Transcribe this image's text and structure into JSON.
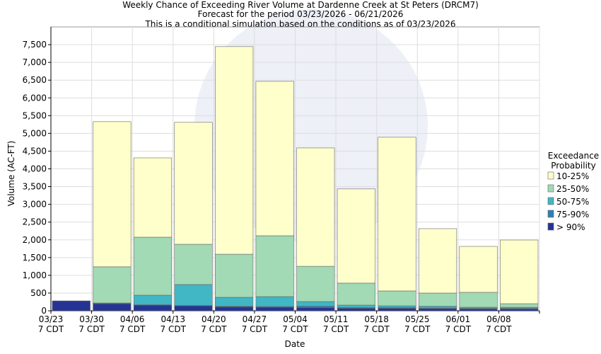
{
  "chart_data": {
    "type": "stacked_bar",
    "title": "Weekly Chance of Exceeding River Volume at Dardenne Creek at St Peters (DRCM7)",
    "subtitle": "Forecast for the period 03/23/2026 - 06/21/2026",
    "subtitle2": "This is a conditional simulation based on the conditions as of 03/23/2026",
    "x_label": "Date",
    "y_label": "Volume (AC-FT)",
    "legend_title": "Exceedance Probability",
    "categories": [
      "03/23 7 CDT",
      "03/30 7 CDT",
      "04/06 7 CDT",
      "04/13 7 CDT",
      "04/20 7 CDT",
      "04/27 7 CDT",
      "05/04 7 CDT",
      "05/11 7 CDT",
      "05/18 7 CDT",
      "05/25 7 CDT",
      "06/01 7 CDT",
      "06/08 7 CDT"
    ],
    "series": [
      {
        "name": "> 90%",
        "color": "#253494",
        "values": [
          280,
          200,
          160,
          140,
          110,
          100,
          90,
          70,
          70,
          60,
          50,
          50
        ]
      },
      {
        "name": "75-90%",
        "color": "#2c7fb8",
        "values": [
          0,
          10,
          10,
          10,
          20,
          20,
          40,
          20,
          20,
          20,
          20,
          20
        ]
      },
      {
        "name": "50-75%",
        "color": "#41b6c4",
        "values": [
          0,
          10,
          270,
          590,
          250,
          280,
          130,
          70,
          50,
          50,
          30,
          30
        ]
      },
      {
        "name": "25-50%",
        "color": "#a1dab4",
        "values": [
          0,
          1020,
          1635,
          1135,
          1215,
          1715,
          995,
          620,
          420,
          370,
          420,
          100
        ]
      },
      {
        "name": "10-25%",
        "color": "#ffffcc",
        "values": [
          0,
          4090,
          2235,
          3435,
          5850,
          4350,
          3335,
          2655,
          4330,
          1815,
          1295,
          1795
        ]
      }
    ],
    "ylim": [
      0,
      8000
    ],
    "yticks": [
      0,
      500,
      {
        "value": 1000,
        "label": "1,000"
      },
      {
        "value": 1500,
        "label": "1,500"
      },
      {
        "value": 2000,
        "label": "2,000"
      },
      {
        "value": 2500,
        "label": "2,500"
      },
      {
        "value": 3000,
        "label": "3,000"
      },
      {
        "value": 3500,
        "label": "3,500"
      },
      {
        "value": 4000,
        "label": "4,000"
      },
      {
        "value": 4500,
        "label": "4,500"
      },
      {
        "value": 5000,
        "label": "5,000"
      },
      {
        "value": 5500,
        "label": "5,500"
      },
      {
        "value": 6000,
        "label": "6,000"
      },
      {
        "value": 6500,
        "label": "6,500"
      },
      {
        "value": 7000,
        "label": "7,000"
      },
      {
        "value": 7500,
        "label": "7,500"
      }
    ],
    "grid": true
  }
}
